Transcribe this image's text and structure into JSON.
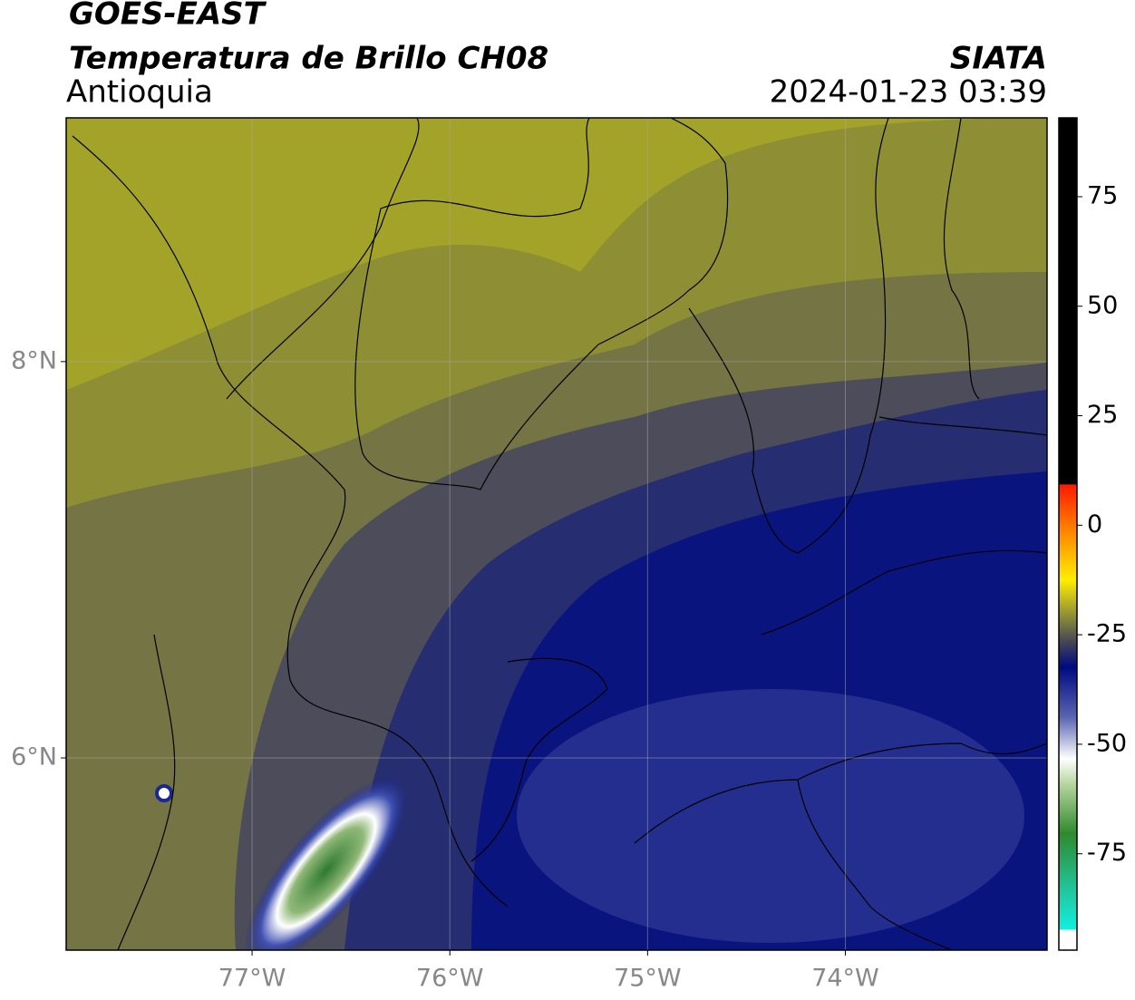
{
  "header": {
    "title": "GOES-EAST",
    "subtitle": "Temperatura de Brillo CH08",
    "region": "Antioquia",
    "source": "SIATA",
    "datetime": "2024-01-23 03:39"
  },
  "map": {
    "xlim": [
      -77.94,
      -72.98
    ],
    "ylim": [
      5.03,
      9.23
    ],
    "xticks": [
      {
        "value": -77,
        "label": "77°W"
      },
      {
        "value": -76,
        "label": "76°W"
      },
      {
        "value": -75,
        "label": "75°W"
      },
      {
        "value": -74,
        "label": "74°W"
      }
    ],
    "yticks": [
      {
        "value": 6,
        "label": "6°N"
      },
      {
        "value": 8,
        "label": "8°N"
      }
    ],
    "grid": true
  },
  "colorbar": {
    "lim": [
      -97,
      93
    ],
    "ticks": [
      75,
      50,
      25,
      0,
      -25,
      -50,
      -75
    ]
  }
}
